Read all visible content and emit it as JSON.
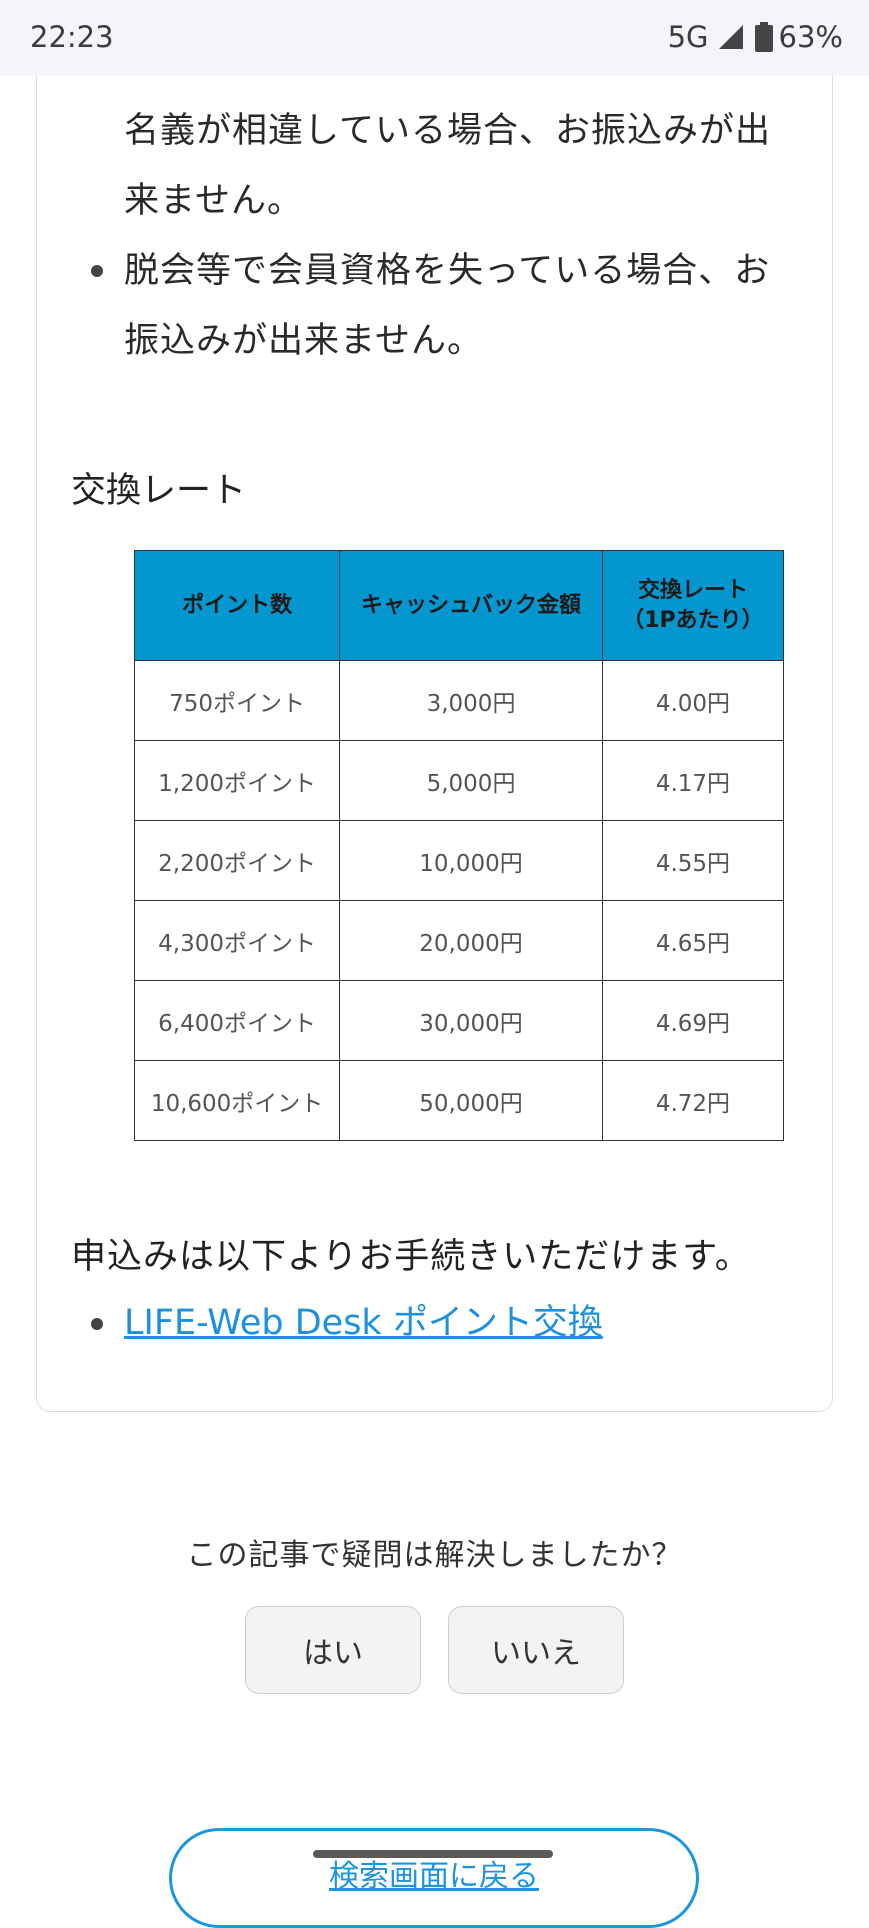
{
  "status_bar": {
    "time": "22:23",
    "network": "5G",
    "battery": "63%"
  },
  "bullets": [
    "カードのご名義とお引き落とし口座のご名義が相違している場合、お振込みが出来ません。",
    "脱会等で会員資格を失っている場合、お振込みが出来ません。"
  ],
  "section_title": "交換レート",
  "table": {
    "headers": [
      "ポイント数",
      "キャッシュバック金額",
      "交換レート\n（1Pあたり）"
    ],
    "header_rate_line1": "交換レート",
    "header_rate_line2": "（1Pあたり）",
    "rows": [
      [
        "750ポイント",
        "3,000円",
        "4.00円"
      ],
      [
        "1,200ポイント",
        "5,000円",
        "4.17円"
      ],
      [
        "2,200ポイント",
        "10,000円",
        "4.55円"
      ],
      [
        "4,300ポイント",
        "20,000円",
        "4.65円"
      ],
      [
        "6,400ポイント",
        "30,000円",
        "4.69円"
      ],
      [
        "10,600ポイント",
        "50,000円",
        "4.72円"
      ]
    ]
  },
  "apply_text": "申込みは以下よりお手続きいただけます。",
  "link_text": "LIFE-Web Desk ポイント交換",
  "feedback": {
    "question": "この記事で疑問は解決しましたか？",
    "yes": "はい",
    "no": "いいえ"
  },
  "back_button": "検索画面に戻る",
  "colors": {
    "table_header": "#0396cf",
    "link": "#1e90e0",
    "status_bar_bg": "#f4f5fa"
  }
}
